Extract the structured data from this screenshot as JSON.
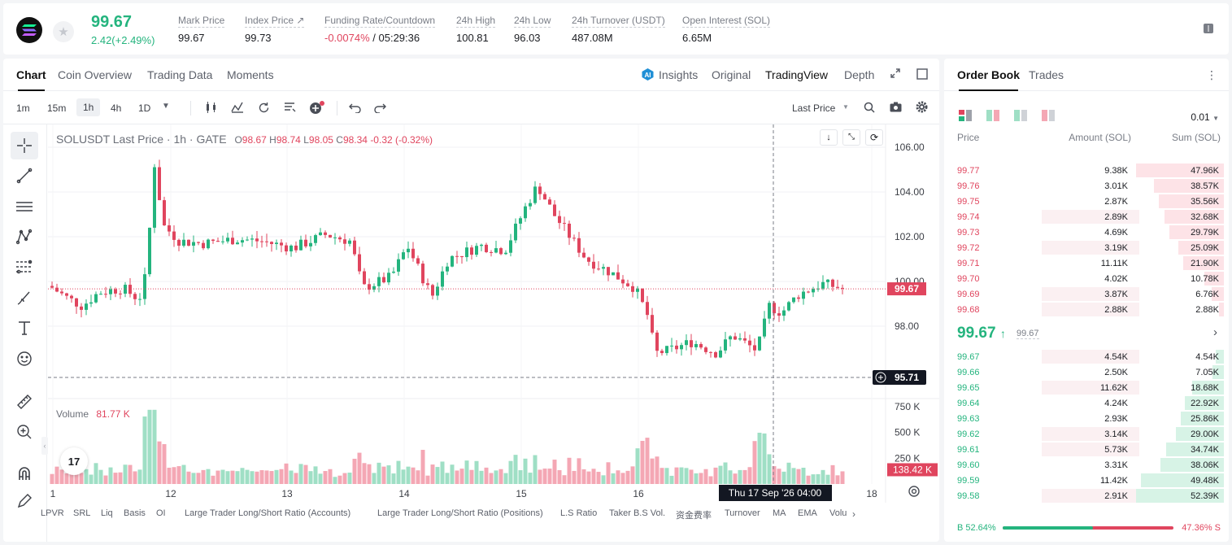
{
  "header": {
    "price": "99.67",
    "change": "2.42(+2.49%)",
    "stats": [
      {
        "label": "Mark Price",
        "value": "99.67"
      },
      {
        "label": "Index Price ↗",
        "value": "99.73"
      },
      {
        "label": "Funding Rate/Countdown",
        "value_neg": "-0.0074%",
        "value": " / 05:29:36"
      },
      {
        "label": "24h High",
        "value": "100.81"
      },
      {
        "label": "24h Low",
        "value": "96.03"
      },
      {
        "label": "24h Turnover (USDT)",
        "value": "487.08M"
      },
      {
        "label": "Open Interest (SOL)",
        "value": "6.65M"
      }
    ]
  },
  "chart_tabs": [
    "Chart",
    "Coin Overview",
    "Trading Data",
    "Moments"
  ],
  "view_tabs": [
    "Insights",
    "Original",
    "TradingView",
    "Depth"
  ],
  "intervals": [
    "1m",
    "15m",
    "1h",
    "4h",
    "1D"
  ],
  "price_source": "Last Price",
  "legend": {
    "symbol": "SOLUSDT Last Price · 1h · GATE",
    "o_label": "O",
    "o": "98.67",
    "h_label": "H",
    "h": "98.74",
    "l_label": "L",
    "l": "98.05",
    "c_label": "C",
    "c": "98.34",
    "chg": "-0.32 (-0.32%)"
  },
  "volume_legend": {
    "label": "Volume",
    "value": "81.77 K"
  },
  "price_axis": [
    "106.00",
    "104.00",
    "102.00",
    "100.00",
    "98.00"
  ],
  "volume_axis": [
    "750 K",
    "500 K",
    "250 K"
  ],
  "time_axis": [
    "1",
    "12",
    "13",
    "14",
    "15",
    "16",
    "18"
  ],
  "last_price_tag": "99.67",
  "crosshair_price_tag": "95.71",
  "crosshair_volume_tag": "138.42 K",
  "crosshair_time_tag": "Thu 17 Sep '26   04:00",
  "indicators": [
    "LPVR",
    "SRL",
    "Liq",
    "Basis",
    "OI",
    "Large Trader Long/Short Ratio (Accounts)",
    "Large Trader Long/Short Ratio (Positions)",
    "L.S Ratio",
    "Taker B.S Vol.",
    "资金费率",
    "Turnover",
    "MA",
    "EMA",
    "Volu"
  ],
  "orderbook": {
    "tabs": [
      "Order Book",
      "Trades"
    ],
    "precision": "0.01",
    "col_price": "Price",
    "col_amount": "Amount (SOL)",
    "col_sum": "Sum (SOL)",
    "asks": [
      {
        "price": "99.77",
        "amount": "9.38K",
        "sum": "47.96K",
        "d": 1.0,
        "a": 0
      },
      {
        "price": "99.76",
        "amount": "3.01K",
        "sum": "38.57K",
        "d": 0.8,
        "a": 0
      },
      {
        "price": "99.75",
        "amount": "2.87K",
        "sum": "35.56K",
        "d": 0.74,
        "a": 0
      },
      {
        "price": "99.74",
        "amount": "2.89K",
        "sum": "32.68K",
        "d": 0.68,
        "a": 0.65
      },
      {
        "price": "99.73",
        "amount": "4.69K",
        "sum": "29.79K",
        "d": 0.62,
        "a": 0
      },
      {
        "price": "99.72",
        "amount": "3.19K",
        "sum": "25.09K",
        "d": 0.52,
        "a": 0.55
      },
      {
        "price": "99.71",
        "amount": "11.11K",
        "sum": "21.90K",
        "d": 0.46,
        "a": 0
      },
      {
        "price": "99.70",
        "amount": "4.02K",
        "sum": "10.78K",
        "d": 0.22,
        "a": 0
      },
      {
        "price": "99.69",
        "amount": "3.87K",
        "sum": "6.76K",
        "d": 0.14,
        "a": 0.55
      },
      {
        "price": "99.68",
        "amount": "2.88K",
        "sum": "2.88K",
        "d": 0.06,
        "a": 0.55
      }
    ],
    "mid_price": "99.67",
    "mid_mark": "99.67",
    "bids": [
      {
        "price": "99.67",
        "amount": "4.54K",
        "sum": "4.54K",
        "d": 0.09,
        "a": 0.55
      },
      {
        "price": "99.66",
        "amount": "2.50K",
        "sum": "7.05K",
        "d": 0.13,
        "a": 0
      },
      {
        "price": "99.65",
        "amount": "11.62K",
        "sum": "18.68K",
        "d": 0.36,
        "a": 0.55
      },
      {
        "price": "99.64",
        "amount": "4.24K",
        "sum": "22.92K",
        "d": 0.44,
        "a": 0
      },
      {
        "price": "99.63",
        "amount": "2.93K",
        "sum": "25.86K",
        "d": 0.49,
        "a": 0
      },
      {
        "price": "99.62",
        "amount": "3.14K",
        "sum": "29.00K",
        "d": 0.55,
        "a": 0.55
      },
      {
        "price": "99.61",
        "amount": "5.73K",
        "sum": "34.74K",
        "d": 0.66,
        "a": 0.55
      },
      {
        "price": "99.60",
        "amount": "3.31K",
        "sum": "38.06K",
        "d": 0.72,
        "a": 0
      },
      {
        "price": "99.59",
        "amount": "11.42K",
        "sum": "49.48K",
        "d": 0.94,
        "a": 0
      },
      {
        "price": "99.58",
        "amount": "2.91K",
        "sum": "52.39K",
        "d": 1.0,
        "a": 0.55
      }
    ],
    "buy_label": "B 52.64%",
    "sell_label": "47.36% S",
    "buy_pct": 52.64
  },
  "colors": {
    "up": "#24b47e",
    "down": "#e0455e",
    "up_light": "#9fdfc5",
    "down_light": "#f4a7b4"
  }
}
